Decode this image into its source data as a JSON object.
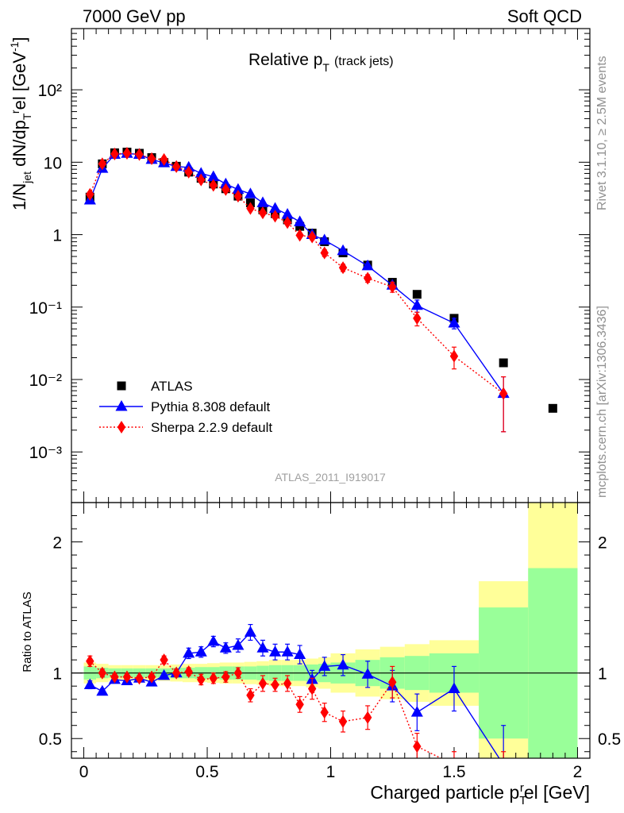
{
  "header": {
    "left": "7000 GeV pp",
    "right": "Soft QCD"
  },
  "side_labels": {
    "rivet": "Rivet 3.1.10, ≥ 2.5M events",
    "mcplots": "mcplots.cern.ch [arXiv:1306.3436]"
  },
  "chart_data": [
    {
      "type": "scatter",
      "panel": "main",
      "title": "Relative p_T (track jets)",
      "title_main": "Relative p",
      "title_sub": "T",
      "title_tail": "(track jets)",
      "ylabel": "1/N_jet dN/dp_T^rel [GeV^-1]",
      "xlabel": "Charged particle p_T^rel [GeV]",
      "xlim": [
        -0.05,
        2.05
      ],
      "ylim": [
        0.0002,
        700
      ],
      "yscale": "log",
      "y_tick_labels": [
        "10⁻³",
        "10⁻²",
        "10⁻¹",
        "1",
        "10",
        "10²"
      ],
      "watermark": "ATLAS_2011_I919017",
      "legend_position": "bottom-left",
      "series": [
        {
          "name": "ATLAS",
          "color": "#000000",
          "marker": "square",
          "x": [
            0.025,
            0.075,
            0.125,
            0.175,
            0.225,
            0.275,
            0.325,
            0.375,
            0.425,
            0.475,
            0.525,
            0.575,
            0.625,
            0.675,
            0.725,
            0.775,
            0.825,
            0.875,
            0.925,
            0.975,
            1.05,
            1.15,
            1.25,
            1.35,
            1.5,
            1.7,
            1.9
          ],
          "y": [
            3.3,
            9.5,
            13.5,
            13.8,
            13.3,
            11.6,
            9.9,
            8.8,
            7.3,
            6.0,
            5.0,
            4.3,
            3.4,
            2.75,
            2.2,
            1.95,
            1.6,
            1.3,
            1.05,
            0.8,
            0.56,
            0.38,
            0.22,
            0.15,
            0.07,
            0.017,
            0.004
          ]
        },
        {
          "name": "Pythia 8.308 default",
          "color": "#0000ff",
          "marker": "triangle",
          "line": "solid",
          "x": [
            0.025,
            0.075,
            0.125,
            0.175,
            0.225,
            0.275,
            0.325,
            0.375,
            0.425,
            0.475,
            0.525,
            0.575,
            0.625,
            0.675,
            0.725,
            0.775,
            0.825,
            0.875,
            0.925,
            0.975,
            1.05,
            1.15,
            1.25,
            1.35,
            1.5,
            1.7
          ],
          "y": [
            3.0,
            8.2,
            12.8,
            13.2,
            12.8,
            10.9,
            9.8,
            8.7,
            8.5,
            7.0,
            6.3,
            5.0,
            4.2,
            3.65,
            2.75,
            2.3,
            1.9,
            1.5,
            1.0,
            0.84,
            0.6,
            0.37,
            0.2,
            0.105,
            0.06,
            0.0064
          ],
          "err": [
            0,
            0,
            0,
            0,
            0,
            0,
            0,
            0,
            0,
            0,
            0,
            0,
            0,
            0,
            0,
            0,
            0,
            0,
            0,
            0,
            0,
            0,
            0,
            0.02,
            0.01,
            0.0045
          ]
        },
        {
          "name": "Sherpa 2.2.9 default",
          "color": "#ff0000",
          "marker": "diamond",
          "line": "dotted",
          "x": [
            0.025,
            0.075,
            0.125,
            0.175,
            0.225,
            0.275,
            0.325,
            0.375,
            0.425,
            0.475,
            0.525,
            0.575,
            0.625,
            0.675,
            0.725,
            0.775,
            0.825,
            0.875,
            0.925,
            0.975,
            1.05,
            1.15,
            1.25,
            1.35,
            1.5,
            1.7
          ],
          "y": [
            3.6,
            9.5,
            13.0,
            13.3,
            12.8,
            11.2,
            10.9,
            8.7,
            7.3,
            5.7,
            4.8,
            4.2,
            3.4,
            2.3,
            2.0,
            1.8,
            1.47,
            0.98,
            0.93,
            0.56,
            0.35,
            0.25,
            0.19,
            0.07,
            0.021,
            0.0064
          ],
          "err": [
            0.3,
            0,
            0,
            0,
            0,
            0,
            0,
            0,
            0,
            0,
            0,
            0,
            0,
            0.1,
            0.1,
            0.1,
            0.1,
            0.06,
            0.08,
            0.06,
            0.04,
            0.03,
            0.03,
            0.015,
            0.007,
            0.0045
          ]
        }
      ]
    },
    {
      "type": "scatter",
      "panel": "ratio",
      "ylabel": "Ratio to ATLAS",
      "xlabel": "Charged particle p_T^rel [GeV]",
      "xlim": [
        -0.05,
        2.05
      ],
      "ylim": [
        0.35,
        2.3
      ],
      "yscale": "linear",
      "x_tick_labels": [
        "0",
        "0.5",
        "1",
        "1.5",
        "2"
      ],
      "y_tick_labels": [
        "0.5",
        "1",
        "2"
      ],
      "bands": {
        "edges": [
          0,
          0.05,
          0.1,
          0.15,
          0.2,
          0.25,
          0.3,
          0.35,
          0.4,
          0.45,
          0.5,
          0.55,
          0.6,
          0.65,
          0.7,
          0.75,
          0.8,
          0.85,
          0.9,
          0.95,
          1.0,
          1.1,
          1.2,
          1.3,
          1.4,
          1.6,
          1.8,
          2.0
        ],
        "inner": [
          0.05,
          0.04,
          0.035,
          0.035,
          0.035,
          0.035,
          0.035,
          0.04,
          0.04,
          0.045,
          0.045,
          0.05,
          0.05,
          0.05,
          0.055,
          0.06,
          0.06,
          0.06,
          0.065,
          0.07,
          0.08,
          0.1,
          0.12,
          0.13,
          0.15,
          0.5,
          0.8
        ],
        "outer": [
          0.08,
          0.07,
          0.06,
          0.06,
          0.06,
          0.06,
          0.06,
          0.065,
          0.07,
          0.07,
          0.075,
          0.08,
          0.08,
          0.085,
          0.09,
          0.1,
          0.1,
          0.1,
          0.11,
          0.12,
          0.15,
          0.18,
          0.2,
          0.22,
          0.25,
          0.7,
          1.3
        ],
        "inner_color": "#99ff99",
        "outer_color": "#ffff99"
      },
      "series": [
        {
          "name": "Pythia 8.308 default",
          "color": "#0000ff",
          "marker": "triangle",
          "line": "solid",
          "x": [
            0.025,
            0.075,
            0.125,
            0.175,
            0.225,
            0.275,
            0.325,
            0.375,
            0.425,
            0.475,
            0.525,
            0.575,
            0.625,
            0.675,
            0.725,
            0.775,
            0.825,
            0.875,
            0.925,
            0.975,
            1.05,
            1.15,
            1.25,
            1.35,
            1.5,
            1.7
          ],
          "y": [
            0.91,
            0.86,
            0.95,
            0.94,
            0.96,
            0.93,
            0.98,
            1.0,
            1.15,
            1.16,
            1.24,
            1.19,
            1.21,
            1.31,
            1.19,
            1.16,
            1.16,
            1.14,
            0.95,
            1.05,
            1.06,
            0.99,
            0.9,
            0.7,
            0.88,
            0.3
          ],
          "err": [
            0.03,
            0.02,
            0.02,
            0.02,
            0.02,
            0.02,
            0.02,
            0.02,
            0.04,
            0.04,
            0.04,
            0.04,
            0.05,
            0.06,
            0.06,
            0.06,
            0.06,
            0.07,
            0.07,
            0.07,
            0.08,
            0.1,
            0.12,
            0.14,
            0.17,
            0.3
          ]
        },
        {
          "name": "Sherpa 2.2.9 default",
          "color": "#ff0000",
          "marker": "diamond",
          "line": "dotted",
          "x": [
            0.025,
            0.075,
            0.125,
            0.175,
            0.225,
            0.275,
            0.325,
            0.375,
            0.425,
            0.475,
            0.525,
            0.575,
            0.625,
            0.675,
            0.725,
            0.775,
            0.825,
            0.875,
            0.925,
            0.975,
            1.05,
            1.15,
            1.25,
            1.35,
            1.5,
            1.7
          ],
          "y": [
            1.09,
            1.0,
            0.97,
            0.97,
            0.96,
            0.97,
            1.1,
            1.0,
            1.01,
            0.95,
            0.96,
            0.97,
            1.0,
            0.83,
            0.92,
            0.91,
            0.92,
            0.76,
            0.88,
            0.7,
            0.63,
            0.66,
            0.93,
            0.44,
            0.3,
            0.3
          ],
          "err": [
            0.04,
            0.03,
            0.02,
            0.02,
            0.02,
            0.02,
            0.03,
            0.03,
            0.03,
            0.04,
            0.04,
            0.04,
            0.04,
            0.05,
            0.06,
            0.05,
            0.06,
            0.06,
            0.08,
            0.07,
            0.08,
            0.09,
            0.12,
            0.1,
            0.1,
            0.1
          ]
        }
      ]
    }
  ]
}
